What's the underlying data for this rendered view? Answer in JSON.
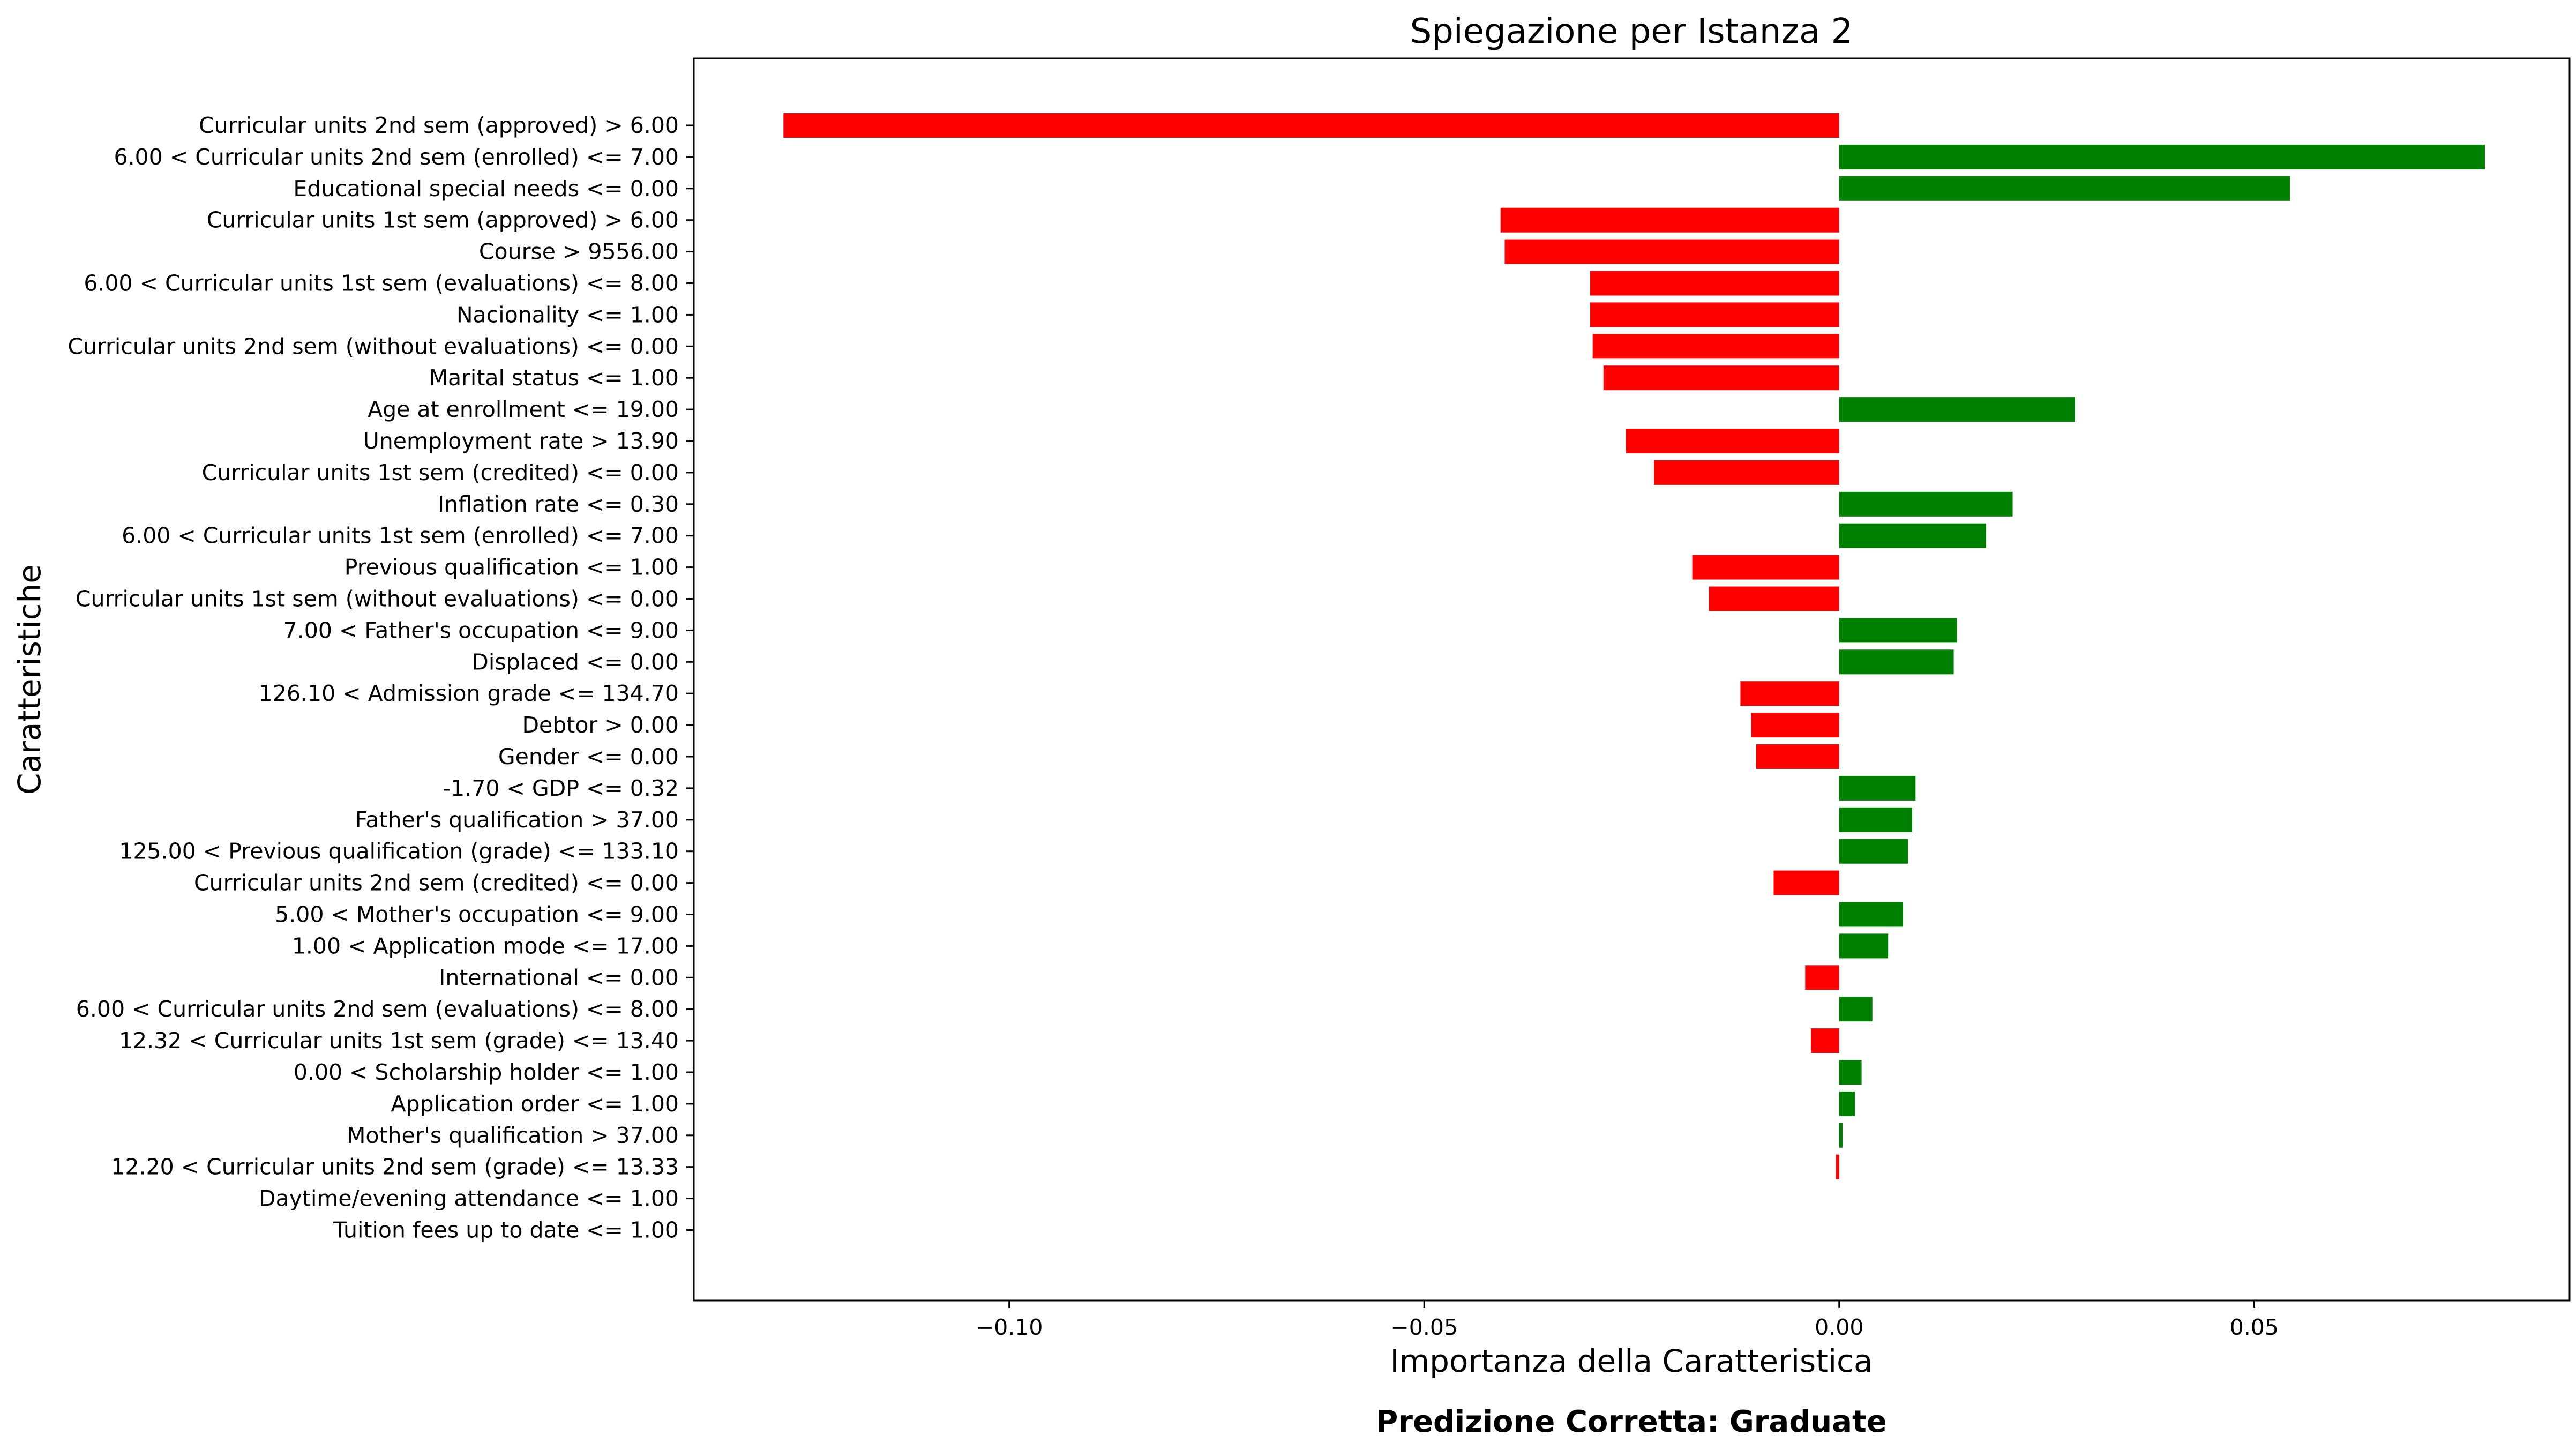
{
  "chart_data": {
    "type": "bar",
    "orientation": "horizontal",
    "title": "Spiegazione per Istanza 2",
    "xlabel": "Importanza della Caratteristica",
    "ylabel": "Caratteristiche",
    "xlim": [
      -0.138,
      0.088
    ],
    "xticks": [
      -0.1,
      -0.05,
      0.0,
      0.05
    ],
    "xtick_labels": [
      "−0.10",
      "−0.05",
      "0.00",
      "0.05"
    ],
    "grid": false,
    "colors": {
      "positive": "#008000",
      "negative": "#ff0000"
    },
    "categories": [
      "Curricular units 2nd sem (approved) > 6.00",
      "6.00 < Curricular units 2nd sem (enrolled) <= 7.00",
      "Educational special needs <= 0.00",
      "Curricular units 1st sem (approved) > 6.00",
      "Course > 9556.00",
      "6.00 < Curricular units 1st sem (evaluations) <= 8.00",
      "Nacionality <= 1.00",
      "Curricular units 2nd sem (without evaluations) <= 0.00",
      "Marital status <= 1.00",
      "Age at enrollment <= 19.00",
      "Unemployment rate > 13.90",
      "Curricular units 1st sem (credited) <= 0.00",
      "Inflation rate <= 0.30",
      "6.00 < Curricular units 1st sem (enrolled) <= 7.00",
      "Previous qualification <= 1.00",
      "Curricular units 1st sem (without evaluations) <= 0.00",
      "7.00 < Father's occupation <= 9.00",
      "Displaced <= 0.00",
      "126.10 < Admission grade <= 134.70",
      "Debtor > 0.00",
      "Gender <= 0.00",
      "-1.70 < GDP <= 0.32",
      "Father's qualification > 37.00",
      "125.00 < Previous qualification (grade) <= 133.10",
      "Curricular units 2nd sem (credited) <= 0.00",
      "5.00 < Mother's occupation <= 9.00",
      "1.00 < Application mode <= 17.00",
      "International <= 0.00",
      "6.00 < Curricular units 2nd sem (evaluations) <= 8.00",
      "12.32 < Curricular units 1st sem (grade) <= 13.40",
      "0.00 < Scholarship holder <= 1.00",
      "Application order <= 1.00",
      "Mother's qualification > 37.00",
      "12.20 < Curricular units 2nd sem (grade) <= 13.33",
      "Daytime/evening attendance\t <= 1.00",
      "Tuition fees up to date <= 1.00"
    ],
    "values": [
      -0.1272,
      0.0778,
      0.0543,
      -0.0408,
      -0.0403,
      -0.03,
      -0.03,
      -0.0297,
      -0.0284,
      0.0284,
      -0.0257,
      -0.0223,
      0.0209,
      0.0177,
      -0.0177,
      -0.0157,
      0.0142,
      0.0138,
      -0.0119,
      -0.0106,
      -0.01,
      0.0092,
      0.0088,
      0.0083,
      -0.0079,
      0.0077,
      0.0059,
      -0.0041,
      0.004,
      -0.0034,
      0.0027,
      0.0019,
      0.0004,
      -0.0004,
      0.0,
      0.0
    ]
  },
  "footer": {
    "text": "Predizione Corretta: Graduate",
    "color": "#ff0000"
  }
}
